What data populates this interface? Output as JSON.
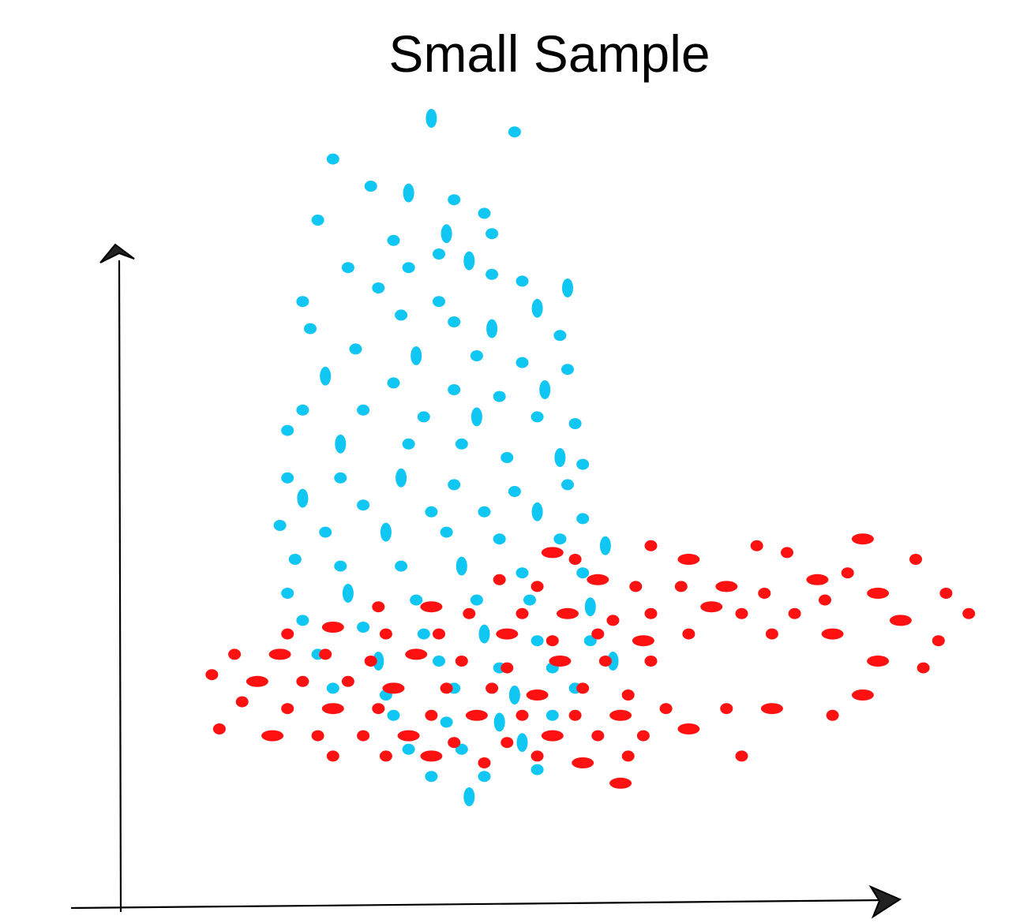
{
  "chart_data": {
    "type": "scatter",
    "title": "Small Sample",
    "xlabel": "",
    "ylabel": "",
    "grid": false,
    "legend": "none",
    "axis_style": "hand-drawn arrows",
    "xlim": [
      0,
      100
    ],
    "ylim": [
      0,
      100
    ],
    "series": [
      {
        "color": "#10c6f2",
        "shape": "ring-with-holes",
        "points": [
          {
            "x": 33,
            "y": 100
          },
          {
            "x": 44,
            "y": 98
          },
          {
            "x": 20,
            "y": 94
          },
          {
            "x": 25,
            "y": 90
          },
          {
            "x": 30,
            "y": 89
          },
          {
            "x": 36,
            "y": 88
          },
          {
            "x": 40,
            "y": 86
          },
          {
            "x": 18,
            "y": 85
          },
          {
            "x": 35,
            "y": 83
          },
          {
            "x": 41,
            "y": 83
          },
          {
            "x": 28,
            "y": 82
          },
          {
            "x": 34,
            "y": 80
          },
          {
            "x": 38,
            "y": 79
          },
          {
            "x": 22,
            "y": 78
          },
          {
            "x": 30,
            "y": 78
          },
          {
            "x": 45,
            "y": 76
          },
          {
            "x": 51,
            "y": 75
          },
          {
            "x": 41,
            "y": 77
          },
          {
            "x": 26,
            "y": 75
          },
          {
            "x": 34,
            "y": 73
          },
          {
            "x": 47,
            "y": 72
          },
          {
            "x": 16,
            "y": 73
          },
          {
            "x": 29,
            "y": 71
          },
          {
            "x": 36,
            "y": 70
          },
          {
            "x": 41,
            "y": 69
          },
          {
            "x": 50,
            "y": 68
          },
          {
            "x": 17,
            "y": 69
          },
          {
            "x": 23,
            "y": 66
          },
          {
            "x": 31,
            "y": 65
          },
          {
            "x": 39,
            "y": 65
          },
          {
            "x": 45,
            "y": 64
          },
          {
            "x": 51,
            "y": 63
          },
          {
            "x": 19,
            "y": 62
          },
          {
            "x": 28,
            "y": 61
          },
          {
            "x": 36,
            "y": 60
          },
          {
            "x": 42,
            "y": 59
          },
          {
            "x": 48,
            "y": 60
          },
          {
            "x": 16,
            "y": 57
          },
          {
            "x": 24,
            "y": 57
          },
          {
            "x": 32,
            "y": 56
          },
          {
            "x": 39,
            "y": 56
          },
          {
            "x": 47,
            "y": 56
          },
          {
            "x": 52,
            "y": 55
          },
          {
            "x": 14,
            "y": 54
          },
          {
            "x": 21,
            "y": 52
          },
          {
            "x": 30,
            "y": 52
          },
          {
            "x": 37,
            "y": 52
          },
          {
            "x": 43,
            "y": 50
          },
          {
            "x": 50,
            "y": 50
          },
          {
            "x": 53,
            "y": 49
          },
          {
            "x": 14,
            "y": 47
          },
          {
            "x": 21,
            "y": 47
          },
          {
            "x": 29,
            "y": 47
          },
          {
            "x": 36,
            "y": 46
          },
          {
            "x": 44,
            "y": 45
          },
          {
            "x": 51,
            "y": 46
          },
          {
            "x": 16,
            "y": 44
          },
          {
            "x": 24,
            "y": 43
          },
          {
            "x": 33,
            "y": 42
          },
          {
            "x": 40,
            "y": 42
          },
          {
            "x": 47,
            "y": 42
          },
          {
            "x": 53,
            "y": 41
          },
          {
            "x": 13,
            "y": 40
          },
          {
            "x": 19,
            "y": 39
          },
          {
            "x": 27,
            "y": 39
          },
          {
            "x": 35,
            "y": 39
          },
          {
            "x": 42,
            "y": 38
          },
          {
            "x": 50,
            "y": 38
          },
          {
            "x": 56,
            "y": 37
          },
          {
            "x": 15,
            "y": 35
          },
          {
            "x": 21,
            "y": 34
          },
          {
            "x": 29,
            "y": 34
          },
          {
            "x": 37,
            "y": 34
          },
          {
            "x": 45,
            "y": 33
          },
          {
            "x": 53,
            "y": 33
          },
          {
            "x": 14,
            "y": 30
          },
          {
            "x": 22,
            "y": 30
          },
          {
            "x": 31,
            "y": 29
          },
          {
            "x": 39,
            "y": 29
          },
          {
            "x": 46,
            "y": 29
          },
          {
            "x": 54,
            "y": 28
          },
          {
            "x": 16,
            "y": 26
          },
          {
            "x": 24,
            "y": 25
          },
          {
            "x": 32,
            "y": 24
          },
          {
            "x": 40,
            "y": 24
          },
          {
            "x": 47,
            "y": 23
          },
          {
            "x": 54,
            "y": 23
          },
          {
            "x": 18,
            "y": 21
          },
          {
            "x": 26,
            "y": 20
          },
          {
            "x": 34,
            "y": 20
          },
          {
            "x": 42,
            "y": 19
          },
          {
            "x": 49,
            "y": 19
          },
          {
            "x": 57,
            "y": 20
          },
          {
            "x": 20,
            "y": 16
          },
          {
            "x": 27,
            "y": 15
          },
          {
            "x": 36,
            "y": 16
          },
          {
            "x": 44,
            "y": 15
          },
          {
            "x": 52,
            "y": 16
          },
          {
            "x": 28,
            "y": 12
          },
          {
            "x": 35,
            "y": 11
          },
          {
            "x": 42,
            "y": 11
          },
          {
            "x": 49,
            "y": 12
          },
          {
            "x": 30,
            "y": 7
          },
          {
            "x": 37,
            "y": 7
          },
          {
            "x": 45,
            "y": 8
          },
          {
            "x": 33,
            "y": 3
          },
          {
            "x": 40,
            "y": 3
          },
          {
            "x": 47,
            "y": 4
          },
          {
            "x": 38,
            "y": 0
          }
        ]
      },
      {
        "color": "#ff1111",
        "shape": "flat-ellipse-with-hole",
        "points": [
          {
            "x": 49,
            "y": 36
          },
          {
            "x": 52,
            "y": 35
          },
          {
            "x": 62,
            "y": 37
          },
          {
            "x": 67,
            "y": 35
          },
          {
            "x": 76,
            "y": 37
          },
          {
            "x": 80,
            "y": 36
          },
          {
            "x": 90,
            "y": 38
          },
          {
            "x": 97,
            "y": 35
          },
          {
            "x": 88,
            "y": 33
          },
          {
            "x": 84,
            "y": 32
          },
          {
            "x": 42,
            "y": 32
          },
          {
            "x": 47,
            "y": 31
          },
          {
            "x": 55,
            "y": 32
          },
          {
            "x": 60,
            "y": 31
          },
          {
            "x": 66,
            "y": 31
          },
          {
            "x": 72,
            "y": 31
          },
          {
            "x": 77,
            "y": 30
          },
          {
            "x": 85,
            "y": 29
          },
          {
            "x": 92,
            "y": 30
          },
          {
            "x": 101,
            "y": 30
          },
          {
            "x": 26,
            "y": 28
          },
          {
            "x": 33,
            "y": 28
          },
          {
            "x": 38,
            "y": 27
          },
          {
            "x": 45,
            "y": 27
          },
          {
            "x": 51,
            "y": 27
          },
          {
            "x": 57,
            "y": 26
          },
          {
            "x": 62,
            "y": 27
          },
          {
            "x": 70,
            "y": 28
          },
          {
            "x": 74,
            "y": 27
          },
          {
            "x": 81,
            "y": 27
          },
          {
            "x": 95,
            "y": 26
          },
          {
            "x": 104,
            "y": 27
          },
          {
            "x": 14,
            "y": 24
          },
          {
            "x": 20,
            "y": 25
          },
          {
            "x": 27,
            "y": 24
          },
          {
            "x": 34,
            "y": 24
          },
          {
            "x": 43,
            "y": 24
          },
          {
            "x": 49,
            "y": 23
          },
          {
            "x": 55,
            "y": 24
          },
          {
            "x": 61,
            "y": 23
          },
          {
            "x": 67,
            "y": 24
          },
          {
            "x": 78,
            "y": 24
          },
          {
            "x": 86,
            "y": 24
          },
          {
            "x": 100,
            "y": 23
          },
          {
            "x": 7,
            "y": 21
          },
          {
            "x": 13,
            "y": 21
          },
          {
            "x": 19,
            "y": 21
          },
          {
            "x": 25,
            "y": 20
          },
          {
            "x": 31,
            "y": 21
          },
          {
            "x": 37,
            "y": 20
          },
          {
            "x": 43,
            "y": 19
          },
          {
            "x": 50,
            "y": 20
          },
          {
            "x": 56,
            "y": 20
          },
          {
            "x": 62,
            "y": 20
          },
          {
            "x": 92,
            "y": 20
          },
          {
            "x": 98,
            "y": 19
          },
          {
            "x": 4,
            "y": 18
          },
          {
            "x": 10,
            "y": 17
          },
          {
            "x": 16,
            "y": 17
          },
          {
            "x": 22,
            "y": 17
          },
          {
            "x": 28,
            "y": 16
          },
          {
            "x": 35,
            "y": 16
          },
          {
            "x": 41,
            "y": 16
          },
          {
            "x": 47,
            "y": 15
          },
          {
            "x": 53,
            "y": 16
          },
          {
            "x": 59,
            "y": 15
          },
          {
            "x": 90,
            "y": 15
          },
          {
            "x": 8,
            "y": 14
          },
          {
            "x": 14,
            "y": 13
          },
          {
            "x": 20,
            "y": 13
          },
          {
            "x": 26,
            "y": 13
          },
          {
            "x": 33,
            "y": 12
          },
          {
            "x": 39,
            "y": 12
          },
          {
            "x": 45,
            "y": 12
          },
          {
            "x": 52,
            "y": 12
          },
          {
            "x": 58,
            "y": 12
          },
          {
            "x": 64,
            "y": 13
          },
          {
            "x": 72,
            "y": 13
          },
          {
            "x": 78,
            "y": 13
          },
          {
            "x": 86,
            "y": 12
          },
          {
            "x": 5,
            "y": 10
          },
          {
            "x": 12,
            "y": 9
          },
          {
            "x": 18,
            "y": 9
          },
          {
            "x": 24,
            "y": 9
          },
          {
            "x": 30,
            "y": 9
          },
          {
            "x": 36,
            "y": 8
          },
          {
            "x": 43,
            "y": 8
          },
          {
            "x": 49,
            "y": 9
          },
          {
            "x": 55,
            "y": 9
          },
          {
            "x": 61,
            "y": 9
          },
          {
            "x": 67,
            "y": 10
          },
          {
            "x": 20,
            "y": 6
          },
          {
            "x": 27,
            "y": 6
          },
          {
            "x": 33,
            "y": 6
          },
          {
            "x": 40,
            "y": 5
          },
          {
            "x": 47,
            "y": 6
          },
          {
            "x": 53,
            "y": 5
          },
          {
            "x": 59,
            "y": 6
          },
          {
            "x": 74,
            "y": 6
          },
          {
            "x": 58,
            "y": 2
          }
        ]
      }
    ]
  }
}
